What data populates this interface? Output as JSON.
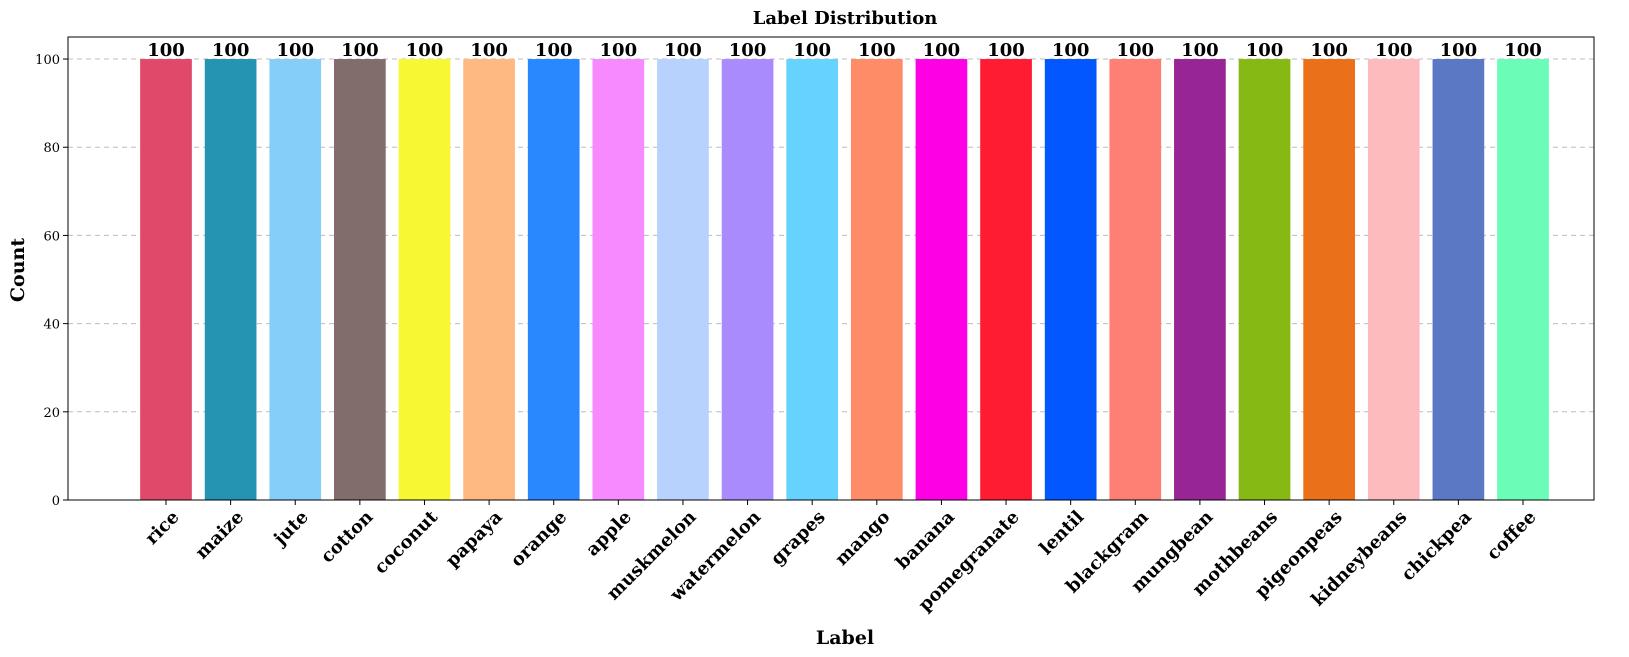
{
  "chart_data": {
    "type": "bar",
    "title": "Label Distribution",
    "xlabel": "Label",
    "ylabel": "Count",
    "ylim": [
      0,
      105
    ],
    "yticks": [
      0,
      20,
      40,
      60,
      80,
      100
    ],
    "grid": "y-dashed",
    "categories": [
      "rice",
      "maize",
      "jute",
      "cotton",
      "coconut",
      "papaya",
      "orange",
      "apple",
      "muskmelon",
      "watermelon",
      "grapes",
      "mango",
      "banana",
      "pomegranate",
      "lentil",
      "blackgram",
      "mungbean",
      "mothbeans",
      "pigeonpeas",
      "kidneybeans",
      "chickpea",
      "coffee"
    ],
    "values": [
      100,
      100,
      100,
      100,
      100,
      100,
      100,
      100,
      100,
      100,
      100,
      100,
      100,
      100,
      100,
      100,
      100,
      100,
      100,
      100,
      100,
      100
    ],
    "colors": [
      "#E0496A",
      "#2594B2",
      "#86CEFA",
      "#826D6D",
      "#F7F733",
      "#FEB983",
      "#2A88FE",
      "#F68AFE",
      "#B8D2FE",
      "#A98BFE",
      "#66D3FE",
      "#FE8C66",
      "#FD00E4",
      "#FE1C33",
      "#0257FE",
      "#FE7F74",
      "#982596",
      "#87B915",
      "#EA7119",
      "#FEBBBE",
      "#5A78C3",
      "#6BFDB8"
    ]
  }
}
